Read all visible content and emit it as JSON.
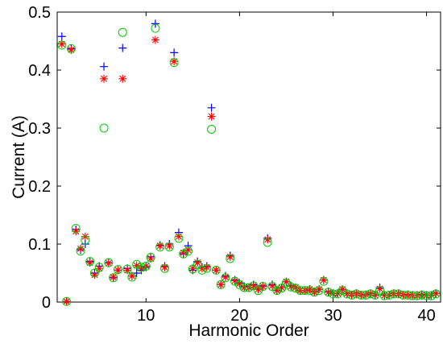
{
  "chart_data": {
    "type": "scatter",
    "title": "",
    "xlabel": "Harmonic Order",
    "ylabel": "Current (A)",
    "xlim": [
      0.5,
      41.5
    ],
    "ylim": [
      0,
      0.5
    ],
    "xticks": [
      10,
      20,
      30,
      40
    ],
    "yticks": [
      0,
      0.1,
      0.2,
      0.3,
      0.4,
      0.5
    ],
    "xtick_labels": [
      "10",
      "20",
      "30",
      "40"
    ],
    "ytick_labels": [
      "0",
      "0.1",
      "0.2",
      "0.3",
      "0.4",
      "0.5"
    ],
    "grid": false,
    "legend": "none",
    "series": [
      {
        "marker": "plus",
        "color": "#0000ff",
        "points": [
          [
            1,
            0.458
          ],
          [
            1.5,
            0.001
          ],
          [
            2,
            0.437
          ],
          [
            2.5,
            0.125
          ],
          [
            3,
            0.09
          ],
          [
            3.5,
            0.1
          ],
          [
            4,
            0.07
          ],
          [
            4.5,
            0.05
          ],
          [
            5,
            0.062
          ],
          [
            5.5,
            0.406
          ],
          [
            6,
            0.068
          ],
          [
            6.5,
            0.042
          ],
          [
            7,
            0.055
          ],
          [
            7.5,
            0.438
          ],
          [
            8,
            0.058
          ],
          [
            8.5,
            0.045
          ],
          [
            9,
            0.05
          ],
          [
            9.5,
            0.055
          ],
          [
            10,
            0.06
          ],
          [
            10.5,
            0.078
          ],
          [
            11,
            0.48
          ],
          [
            11.5,
            0.098
          ],
          [
            12,
            0.062
          ],
          [
            12.5,
            0.1
          ],
          [
            13,
            0.43
          ],
          [
            13.5,
            0.12
          ],
          [
            14,
            0.083
          ],
          [
            14.5,
            0.097
          ],
          [
            15,
            0.055
          ],
          [
            15.5,
            0.07
          ],
          [
            16,
            0.06
          ],
          [
            16.5,
            0.062
          ],
          [
            17,
            0.335
          ],
          [
            17.5,
            0.055
          ],
          [
            18,
            0.03
          ],
          [
            18.5,
            0.045
          ],
          [
            19,
            0.08
          ],
          [
            19.5,
            0.038
          ],
          [
            20,
            0.033
          ],
          [
            20.5,
            0.027
          ],
          [
            21,
            0.025
          ],
          [
            21.5,
            0.03
          ],
          [
            22,
            0.022
          ],
          [
            22.5,
            0.028
          ],
          [
            23,
            0.11
          ],
          [
            23.5,
            0.03
          ],
          [
            24,
            0.02
          ],
          [
            24.5,
            0.025
          ],
          [
            25,
            0.035
          ],
          [
            25.5,
            0.028
          ],
          [
            26,
            0.025
          ],
          [
            26.5,
            0.02
          ],
          [
            27,
            0.02
          ],
          [
            27.5,
            0.022
          ],
          [
            28,
            0.018
          ],
          [
            28.5,
            0.022
          ],
          [
            29,
            0.038
          ],
          [
            29.5,
            0.018
          ],
          [
            30,
            0.015
          ],
          [
            30.5,
            0.015
          ],
          [
            31,
            0.022
          ],
          [
            31.5,
            0.015
          ],
          [
            32,
            0.012
          ],
          [
            32.5,
            0.015
          ],
          [
            33,
            0.012
          ],
          [
            33.5,
            0.013
          ],
          [
            34,
            0.015
          ],
          [
            34.5,
            0.012
          ],
          [
            35,
            0.025
          ],
          [
            35.5,
            0.012
          ],
          [
            36,
            0.012
          ],
          [
            36.5,
            0.015
          ],
          [
            37,
            0.015
          ],
          [
            37.5,
            0.012
          ],
          [
            38,
            0.013
          ],
          [
            38.5,
            0.012
          ],
          [
            39,
            0.012
          ],
          [
            39.5,
            0.013
          ],
          [
            40,
            0.012
          ],
          [
            40.5,
            0.012
          ],
          [
            41,
            0.015
          ]
        ]
      },
      {
        "marker": "star",
        "color": "#ff0000",
        "points": [
          [
            1,
            0.445
          ],
          [
            1.5,
            0.001
          ],
          [
            2,
            0.435
          ],
          [
            2.5,
            0.122
          ],
          [
            3,
            0.092
          ],
          [
            3.5,
            0.113
          ],
          [
            4,
            0.068
          ],
          [
            4.5,
            0.047
          ],
          [
            5,
            0.058
          ],
          [
            5.5,
            0.385
          ],
          [
            6,
            0.067
          ],
          [
            6.5,
            0.043
          ],
          [
            7,
            0.055
          ],
          [
            7.5,
            0.385
          ],
          [
            8,
            0.055
          ],
          [
            8.5,
            0.045
          ],
          [
            9,
            0.063
          ],
          [
            9.5,
            0.058
          ],
          [
            10,
            0.062
          ],
          [
            10.5,
            0.075
          ],
          [
            11,
            0.452
          ],
          [
            11.5,
            0.097
          ],
          [
            12,
            0.06
          ],
          [
            12.5,
            0.097
          ],
          [
            13,
            0.415
          ],
          [
            13.5,
            0.113
          ],
          [
            14,
            0.085
          ],
          [
            14.5,
            0.09
          ],
          [
            15,
            0.058
          ],
          [
            15.5,
            0.068
          ],
          [
            16,
            0.058
          ],
          [
            16.5,
            0.06
          ],
          [
            17,
            0.32
          ],
          [
            17.5,
            0.055
          ],
          [
            18,
            0.03
          ],
          [
            18.5,
            0.043
          ],
          [
            19,
            0.078
          ],
          [
            19.5,
            0.037
          ],
          [
            20,
            0.032
          ],
          [
            20.5,
            0.025
          ],
          [
            21,
            0.025
          ],
          [
            21.5,
            0.028
          ],
          [
            22,
            0.022
          ],
          [
            22.5,
            0.027
          ],
          [
            23,
            0.108
          ],
          [
            23.5,
            0.028
          ],
          [
            24,
            0.02
          ],
          [
            24.5,
            0.025
          ],
          [
            25,
            0.035
          ],
          [
            25.5,
            0.027
          ],
          [
            26,
            0.025
          ],
          [
            26.5,
            0.02
          ],
          [
            27,
            0.02
          ],
          [
            27.5,
            0.022
          ],
          [
            28,
            0.017
          ],
          [
            28.5,
            0.022
          ],
          [
            29,
            0.038
          ],
          [
            29.5,
            0.017
          ],
          [
            30,
            0.015
          ],
          [
            30.5,
            0.015
          ],
          [
            31,
            0.022
          ],
          [
            31.5,
            0.015
          ],
          [
            32,
            0.012
          ],
          [
            32.5,
            0.015
          ],
          [
            33,
            0.012
          ],
          [
            33.5,
            0.013
          ],
          [
            34,
            0.015
          ],
          [
            34.5,
            0.012
          ],
          [
            35,
            0.023
          ],
          [
            35.5,
            0.012
          ],
          [
            36,
            0.012
          ],
          [
            36.5,
            0.015
          ],
          [
            37,
            0.015
          ],
          [
            37.5,
            0.012
          ],
          [
            38,
            0.013
          ],
          [
            38.5,
            0.012
          ],
          [
            39,
            0.012
          ],
          [
            39.5,
            0.013
          ],
          [
            40,
            0.012
          ],
          [
            40.5,
            0.012
          ],
          [
            41,
            0.015
          ]
        ]
      },
      {
        "marker": "circle",
        "color": "#00cc00",
        "points": [
          [
            1,
            0.443
          ],
          [
            1.5,
            0.001
          ],
          [
            2,
            0.437
          ],
          [
            2.5,
            0.127
          ],
          [
            3,
            0.088
          ],
          [
            3.5,
            0.107
          ],
          [
            4,
            0.07
          ],
          [
            4.5,
            0.05
          ],
          [
            5,
            0.06
          ],
          [
            5.5,
            0.3
          ],
          [
            6,
            0.068
          ],
          [
            6.5,
            0.042
          ],
          [
            7,
            0.056
          ],
          [
            7.5,
            0.465
          ],
          [
            8,
            0.057
          ],
          [
            8.5,
            0.043
          ],
          [
            9,
            0.065
          ],
          [
            9.5,
            0.06
          ],
          [
            10,
            0.062
          ],
          [
            10.5,
            0.077
          ],
          [
            11,
            0.472
          ],
          [
            11.5,
            0.095
          ],
          [
            12,
            0.058
          ],
          [
            12.5,
            0.095
          ],
          [
            13,
            0.413
          ],
          [
            13.5,
            0.11
          ],
          [
            14,
            0.083
          ],
          [
            14.5,
            0.088
          ],
          [
            15,
            0.057
          ],
          [
            15.5,
            0.065
          ],
          [
            16,
            0.055
          ],
          [
            16.5,
            0.058
          ],
          [
            17,
            0.298
          ],
          [
            17.5,
            0.055
          ],
          [
            18,
            0.03
          ],
          [
            18.5,
            0.042
          ],
          [
            19,
            0.075
          ],
          [
            19.5,
            0.036
          ],
          [
            20,
            0.03
          ],
          [
            20.5,
            0.025
          ],
          [
            21,
            0.025
          ],
          [
            21.5,
            0.028
          ],
          [
            22,
            0.02
          ],
          [
            22.5,
            0.027
          ],
          [
            23,
            0.103
          ],
          [
            23.5,
            0.027
          ],
          [
            24,
            0.02
          ],
          [
            24.5,
            0.024
          ],
          [
            25,
            0.033
          ],
          [
            25.5,
            0.026
          ],
          [
            26,
            0.024
          ],
          [
            26.5,
            0.02
          ],
          [
            27,
            0.02
          ],
          [
            27.5,
            0.02
          ],
          [
            28,
            0.017
          ],
          [
            28.5,
            0.02
          ],
          [
            29,
            0.036
          ],
          [
            29.5,
            0.017
          ],
          [
            30,
            0.014
          ],
          [
            30.5,
            0.014
          ],
          [
            31,
            0.02
          ],
          [
            31.5,
            0.014
          ],
          [
            32,
            0.012
          ],
          [
            32.5,
            0.014
          ],
          [
            33,
            0.012
          ],
          [
            33.5,
            0.012
          ],
          [
            34,
            0.014
          ],
          [
            34.5,
            0.012
          ],
          [
            35,
            0.02
          ],
          [
            35.5,
            0.011
          ],
          [
            36,
            0.012
          ],
          [
            36.5,
            0.014
          ],
          [
            37,
            0.014
          ],
          [
            37.5,
            0.012
          ],
          [
            38,
            0.012
          ],
          [
            38.5,
            0.011
          ],
          [
            39,
            0.011
          ],
          [
            39.5,
            0.012
          ],
          [
            40,
            0.011
          ],
          [
            40.5,
            0.011
          ],
          [
            41,
            0.014
          ]
        ]
      }
    ]
  }
}
